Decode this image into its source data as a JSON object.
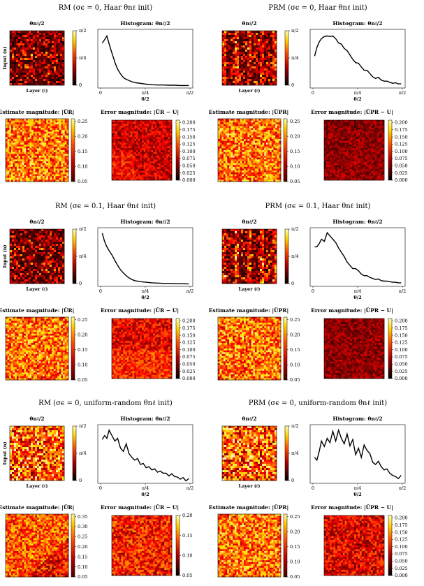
{
  "panels": [
    {
      "title": "RM (σϵ = 0, Haar θnℓ init)",
      "heatmap_title": "θnℓ/2",
      "ylabel": "Input (n)",
      "xlabel": "Layer (ℓ)",
      "colorbar_ticks": [
        "0",
        "π/4",
        "π/2"
      ],
      "hist_title": "Histogram: θnℓ/2",
      "hist_xlabel": "θ/2",
      "hist_xticks": [
        "0",
        "π/4",
        "π/2"
      ],
      "est_title": "Estimate magnitude: |ÛR|",
      "est_ticks": [
        "0.05",
        "0.10",
        "0.15",
        "0.20",
        "0.25"
      ],
      "err_title": "Error magnitude: |ÛR − U|",
      "err_ticks": [
        "0.000",
        "0.025",
        "0.050",
        "0.075",
        "0.100",
        "0.125",
        "0.150",
        "0.175",
        "0.200"
      ]
    },
    {
      "title": "PRM (σϵ = 0, Haar θnℓ init)",
      "heatmap_title": "θnℓ/2",
      "ylabel": "",
      "xlabel": "Layer (ℓ)",
      "colorbar_ticks": [
        "0",
        "π/4",
        "π/2"
      ],
      "hist_title": "Histogram: θnℓ/2",
      "hist_xlabel": "θ/2",
      "hist_xticks": [
        "0",
        "π/4",
        "π/2"
      ],
      "est_title": "Estimate magnitude: |ÛPR|",
      "est_ticks": [
        "0.05",
        "0.10",
        "0.15",
        "0.20",
        "0.25"
      ],
      "err_title": "Error magnitude: |ÛPR − U|",
      "err_ticks": [
        "0.000",
        "0.025",
        "0.050",
        "0.075",
        "0.100",
        "0.125",
        "0.150",
        "0.175",
        "0.200"
      ]
    },
    {
      "title": "RM (σϵ = 0.1, Haar θnℓ init)",
      "heatmap_title": "θnℓ/2",
      "ylabel": "Input (n)",
      "xlabel": "Layer (ℓ)",
      "colorbar_ticks": [
        "0",
        "π/4",
        "π/2"
      ],
      "hist_title": "Histogram: θnℓ/2",
      "hist_xlabel": "θ/2",
      "hist_xticks": [
        "0",
        "π/4",
        "π/2"
      ],
      "est_title": "Estimate magnitude: |ÛR|",
      "est_ticks": [
        "0.05",
        "0.10",
        "0.15",
        "0.20",
        "0.25"
      ],
      "err_title": "Error magnitude: |ÛR − U|",
      "err_ticks": [
        "0.000",
        "0.025",
        "0.050",
        "0.075",
        "0.100",
        "0.125",
        "0.150",
        "0.175",
        "0.200"
      ]
    },
    {
      "title": "PRM (σϵ = 0.1, Haar θnℓ init)",
      "heatmap_title": "θnℓ/2",
      "ylabel": "",
      "xlabel": "Layer (ℓ)",
      "colorbar_ticks": [
        "0",
        "π/4",
        "π/2"
      ],
      "hist_title": "Histogram: θnℓ/2",
      "hist_xlabel": "θ/2",
      "hist_xticks": [
        "0",
        "π/4",
        "π/2"
      ],
      "est_title": "Estimate magnitude: |ÛPR|",
      "est_ticks": [
        "0.05",
        "0.10",
        "0.15",
        "0.20",
        "0.25"
      ],
      "err_title": "Error magnitude: |ÛPR − U|",
      "err_ticks": [
        "0.000",
        "0.025",
        "0.050",
        "0.075",
        "0.100",
        "0.125",
        "0.150",
        "0.175",
        "0.200"
      ]
    },
    {
      "title": "RM (σϵ = 0, uniform-random θnℓ init)",
      "heatmap_title": "θnℓ/2",
      "ylabel": "Input (n)",
      "xlabel": "Layer (ℓ)",
      "colorbar_ticks": [
        "0",
        "π/4",
        "π/2"
      ],
      "hist_title": "Histogram: θnℓ/2",
      "hist_xlabel": "θ/2",
      "hist_xticks": [
        "0",
        "π/4",
        "π/2"
      ],
      "est_title": "Estimate magnitude: |ÛR|",
      "est_ticks": [
        "0.05",
        "0.10",
        "0.15",
        "0.20",
        "0.25",
        "0.30",
        "0.35"
      ],
      "err_title": "Error magnitude: |ÛR − U|",
      "err_ticks": [
        "0.05",
        "0.10",
        "0.15",
        "0.20"
      ]
    },
    {
      "title": "PRM (σϵ = 0, uniform-random θnℓ init)",
      "heatmap_title": "θnℓ/2",
      "ylabel": "",
      "xlabel": "Layer (ℓ)",
      "colorbar_ticks": [
        "0",
        "π/4",
        "π/2"
      ],
      "hist_title": "Histogram: θnℓ/2",
      "hist_xlabel": "θ/2",
      "hist_xticks": [
        "0",
        "π/4",
        "π/2"
      ],
      "est_title": "Estimate magnitude: |ÛPR|",
      "est_ticks": [
        "0.05",
        "0.10",
        "0.15",
        "0.20",
        "0.25"
      ],
      "err_title": "Error magnitude: |ÛPR − U|",
      "err_ticks": [
        "0.000",
        "0.025",
        "0.050",
        "0.075",
        "0.100",
        "0.125",
        "0.150",
        "0.175",
        "0.200"
      ]
    }
  ],
  "chart_data": [
    {
      "type": "line",
      "panel": 0,
      "title": "Histogram: θnℓ/2",
      "xlabel": "θ/2",
      "xlim": [
        0,
        1.5708
      ],
      "x": [
        0.03,
        0.07,
        0.11,
        0.14,
        0.18,
        0.22,
        0.26,
        0.3,
        0.34,
        0.38,
        0.42,
        0.48,
        0.55,
        0.62,
        0.7,
        0.8,
        0.9,
        1.0,
        1.1,
        1.2,
        1.3,
        1.4,
        1.5,
        1.55
      ],
      "values": [
        0.8,
        0.86,
        0.93,
        0.82,
        0.68,
        0.55,
        0.42,
        0.32,
        0.25,
        0.19,
        0.15,
        0.12,
        0.09,
        0.07,
        0.06,
        0.045,
        0.035,
        0.03,
        0.03,
        0.025,
        0.025,
        0.02,
        0.02,
        0.02
      ]
    },
    {
      "type": "line",
      "panel": 1,
      "title": "Histogram: θnℓ/2",
      "xlabel": "θ/2",
      "xlim": [
        0,
        1.5708
      ],
      "x": [
        0.03,
        0.07,
        0.11,
        0.15,
        0.2,
        0.25,
        0.3,
        0.35,
        0.4,
        0.45,
        0.5,
        0.55,
        0.6,
        0.65,
        0.7,
        0.75,
        0.8,
        0.85,
        0.9,
        0.95,
        1.0,
        1.05,
        1.1,
        1.15,
        1.2,
        1.25,
        1.3,
        1.35,
        1.4,
        1.45,
        1.5,
        1.55
      ],
      "values": [
        0.56,
        0.72,
        0.82,
        0.88,
        0.92,
        0.93,
        0.92,
        0.93,
        0.88,
        0.8,
        0.78,
        0.7,
        0.66,
        0.58,
        0.5,
        0.44,
        0.43,
        0.36,
        0.3,
        0.3,
        0.24,
        0.18,
        0.15,
        0.17,
        0.12,
        0.1,
        0.1,
        0.08,
        0.06,
        0.07,
        0.05,
        0.05
      ]
    },
    {
      "type": "line",
      "panel": 2,
      "title": "Histogram: θnℓ/2",
      "xlabel": "θ/2",
      "xlim": [
        0,
        1.5708
      ],
      "x": [
        0.03,
        0.07,
        0.11,
        0.15,
        0.2,
        0.25,
        0.3,
        0.35,
        0.4,
        0.45,
        0.5,
        0.55,
        0.6,
        0.7,
        0.8,
        0.9,
        1.0,
        1.1,
        1.2,
        1.3,
        1.4,
        1.5,
        1.55
      ],
      "values": [
        0.95,
        0.8,
        0.7,
        0.63,
        0.55,
        0.45,
        0.36,
        0.28,
        0.22,
        0.17,
        0.13,
        0.1,
        0.08,
        0.06,
        0.05,
        0.04,
        0.035,
        0.03,
        0.03,
        0.025,
        0.025,
        0.02,
        0.02
      ]
    },
    {
      "type": "line",
      "panel": 3,
      "title": "Histogram: θnℓ/2",
      "xlabel": "θ/2",
      "xlim": [
        0,
        1.5708
      ],
      "x": [
        0.03,
        0.07,
        0.11,
        0.15,
        0.2,
        0.25,
        0.3,
        0.35,
        0.4,
        0.45,
        0.5,
        0.55,
        0.6,
        0.65,
        0.7,
        0.75,
        0.8,
        0.85,
        0.9,
        0.95,
        1.0,
        1.05,
        1.1,
        1.15,
        1.2,
        1.25,
        1.3,
        1.35,
        1.4,
        1.45,
        1.5,
        1.55
      ],
      "values": [
        0.7,
        0.7,
        0.76,
        0.84,
        0.8,
        0.96,
        0.9,
        0.84,
        0.78,
        0.68,
        0.6,
        0.52,
        0.42,
        0.36,
        0.3,
        0.3,
        0.26,
        0.2,
        0.17,
        0.17,
        0.14,
        0.12,
        0.1,
        0.11,
        0.08,
        0.07,
        0.07,
        0.06,
        0.05,
        0.05,
        0.04,
        0.04
      ]
    },
    {
      "type": "line",
      "panel": 4,
      "title": "Histogram: θnℓ/2",
      "xlabel": "θ/2",
      "xlim": [
        0,
        1.5708
      ],
      "x": [
        0.03,
        0.07,
        0.11,
        0.15,
        0.2,
        0.25,
        0.3,
        0.35,
        0.4,
        0.45,
        0.5,
        0.55,
        0.6,
        0.65,
        0.7,
        0.75,
        0.8,
        0.85,
        0.9,
        0.95,
        1.0,
        1.05,
        1.1,
        1.15,
        1.2,
        1.25,
        1.3,
        1.35,
        1.4,
        1.45,
        1.5,
        1.55
      ],
      "values": [
        0.78,
        0.85,
        0.8,
        0.95,
        0.85,
        0.75,
        0.8,
        0.62,
        0.56,
        0.7,
        0.52,
        0.45,
        0.4,
        0.43,
        0.32,
        0.34,
        0.26,
        0.28,
        0.22,
        0.24,
        0.18,
        0.2,
        0.16,
        0.16,
        0.11,
        0.15,
        0.1,
        0.09,
        0.05,
        0.08,
        0.02,
        0.06
      ]
    },
    {
      "type": "line",
      "panel": 5,
      "title": "Histogram: θnℓ/2",
      "xlabel": "θ/2",
      "xlim": [
        0,
        1.5708
      ],
      "x": [
        0.03,
        0.07,
        0.11,
        0.15,
        0.2,
        0.25,
        0.3,
        0.35,
        0.4,
        0.45,
        0.5,
        0.55,
        0.6,
        0.65,
        0.7,
        0.75,
        0.8,
        0.85,
        0.9,
        0.95,
        1.0,
        1.05,
        1.1,
        1.15,
        1.2,
        1.25,
        1.3,
        1.35,
        1.4,
        1.45,
        1.5,
        1.55
      ],
      "values": [
        0.45,
        0.4,
        0.56,
        0.75,
        0.65,
        0.8,
        0.72,
        0.93,
        0.75,
        0.95,
        0.8,
        0.7,
        0.88,
        0.66,
        0.78,
        0.5,
        0.62,
        0.45,
        0.68,
        0.58,
        0.52,
        0.36,
        0.32,
        0.38,
        0.28,
        0.22,
        0.24,
        0.16,
        0.12,
        0.1,
        0.06,
        0.12
      ]
    }
  ]
}
